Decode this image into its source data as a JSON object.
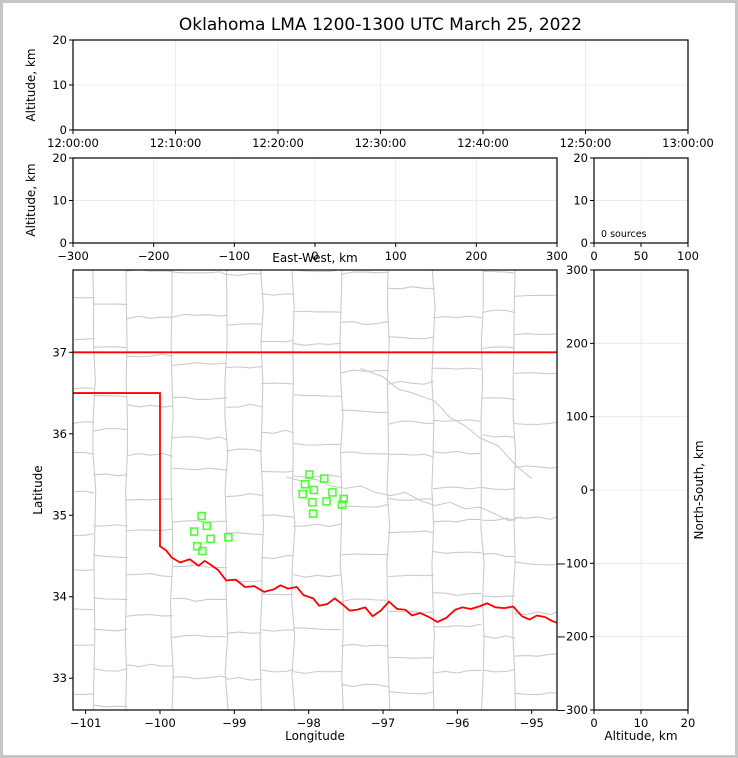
{
  "title": "Oklahoma LMA 1200-1300 UTC March 25, 2022",
  "colors": {
    "state_border": "#ff0000",
    "county_line": "#c9c9c9",
    "source_marker": "#4cff33",
    "grid_line": "#ececec",
    "frame": "#000000",
    "outer_border": "#c6c6c6",
    "background": "#ffffff"
  },
  "panels": {
    "time_height": {
      "ylabel": "Altitude, km",
      "yticks": [
        0,
        10,
        20
      ],
      "ylim": [
        0,
        20
      ],
      "xtick_labels": [
        "12:00:00",
        "12:10:00",
        "12:20:00",
        "12:30:00",
        "12:40:00",
        "12:50:00",
        "13:00:00"
      ]
    },
    "ew_height": {
      "ylabel": "Altitude, km",
      "xlabel": "East-West, km",
      "yticks": [
        0,
        10,
        20
      ],
      "ylim": [
        0,
        20
      ],
      "xticks": [
        -300,
        -200,
        -100,
        0,
        100,
        200,
        300
      ],
      "xlim": [
        -300,
        300
      ]
    },
    "alt_histogram": {
      "annotation": "0 sources",
      "yticks": [
        0,
        10,
        20
      ],
      "ylim": [
        0,
        20
      ],
      "xticks": [
        0,
        50,
        100
      ],
      "xlim": [
        0,
        100
      ]
    },
    "plan_view": {
      "xlabel": "Longitude",
      "ylabel": "Latitude",
      "xticks": [
        -101,
        -100,
        -99,
        -98,
        -97,
        -96,
        -95
      ],
      "yticks": [
        33,
        34,
        35,
        36,
        37
      ],
      "xlim": [
        -101.17,
        -94.66
      ],
      "ylim": [
        32.61,
        38.01
      ]
    },
    "ns_height": {
      "ylabel_right": "North-South, km",
      "xlabel": "Altitude, km",
      "yticks": [
        300,
        200,
        100,
        0,
        -100,
        -200,
        -300
      ],
      "ylim": [
        -300,
        300
      ],
      "xticks": [
        0,
        10,
        20
      ],
      "xlim": [
        0,
        20
      ]
    }
  },
  "chart_data": [
    {
      "panel": "time_height",
      "type": "scatter",
      "ylabel": "Altitude, km",
      "x_tick_labels": [
        "12:00:00",
        "12:10:00",
        "12:20:00",
        "12:30:00",
        "12:40:00",
        "12:50:00",
        "13:00:00"
      ],
      "ylim": [
        0,
        20
      ],
      "points": []
    },
    {
      "panel": "ew_height",
      "type": "scatter",
      "xlabel": "East-West, km",
      "ylabel": "Altitude, km",
      "xlim": [
        -300,
        300
      ],
      "ylim": [
        0,
        20
      ],
      "points": []
    },
    {
      "panel": "alt_histogram",
      "type": "line",
      "annotation": "0 sources",
      "xlim": [
        0,
        100
      ],
      "ylim": [
        0,
        20
      ],
      "points": []
    },
    {
      "panel": "plan_view",
      "type": "scatter",
      "xlabel": "Longitude",
      "ylabel": "Latitude",
      "xlim": [
        -101.17,
        -94.66
      ],
      "ylim": [
        32.61,
        38.01
      ],
      "county_boundaries_shown": true,
      "sources_lonlat": [
        [
          -97.99,
          35.5
        ],
        [
          -97.79,
          35.45
        ],
        [
          -98.05,
          35.38
        ],
        [
          -97.93,
          35.31
        ],
        [
          -98.08,
          35.26
        ],
        [
          -97.68,
          35.28
        ],
        [
          -97.95,
          35.16
        ],
        [
          -97.76,
          35.17
        ],
        [
          -97.53,
          35.2
        ],
        [
          -97.55,
          35.13
        ],
        [
          -97.94,
          35.02
        ],
        [
          -99.44,
          34.99
        ],
        [
          -99.37,
          34.87
        ],
        [
          -99.54,
          34.8
        ],
        [
          -99.32,
          34.71
        ],
        [
          -99.08,
          34.73
        ],
        [
          -99.5,
          34.62
        ],
        [
          -99.43,
          34.56
        ]
      ],
      "state_border": {
        "north": [
          [
            -101.17,
            37.0
          ],
          [
            -94.66,
            37.0
          ]
        ],
        "panhandle_south": [
          [
            -101.17,
            36.5
          ],
          [
            -100.0,
            36.5
          ]
        ],
        "panhandle_west": [
          [
            -100.0,
            36.5
          ],
          [
            -100.0,
            34.62
          ]
        ],
        "red_river": [
          [
            -100.0,
            34.62
          ],
          [
            -99.92,
            34.57
          ],
          [
            -99.84,
            34.48
          ],
          [
            -99.73,
            34.42
          ],
          [
            -99.6,
            34.46
          ],
          [
            -99.48,
            34.38
          ],
          [
            -99.4,
            34.44
          ],
          [
            -99.33,
            34.4
          ],
          [
            -99.22,
            34.33
          ],
          [
            -99.11,
            34.2
          ],
          [
            -98.98,
            34.21
          ],
          [
            -98.86,
            34.12
          ],
          [
            -98.73,
            34.13
          ],
          [
            -98.6,
            34.06
          ],
          [
            -98.47,
            34.09
          ],
          [
            -98.38,
            34.14
          ],
          [
            -98.28,
            34.1
          ],
          [
            -98.16,
            34.12
          ],
          [
            -98.07,
            34.02
          ],
          [
            -97.94,
            33.98
          ],
          [
            -97.86,
            33.89
          ],
          [
            -97.75,
            33.91
          ],
          [
            -97.65,
            33.98
          ],
          [
            -97.55,
            33.91
          ],
          [
            -97.45,
            33.83
          ],
          [
            -97.35,
            33.84
          ],
          [
            -97.24,
            33.87
          ],
          [
            -97.14,
            33.76
          ],
          [
            -97.03,
            33.83
          ],
          [
            -96.92,
            33.94
          ],
          [
            -96.81,
            33.85
          ],
          [
            -96.7,
            33.84
          ],
          [
            -96.61,
            33.77
          ],
          [
            -96.5,
            33.8
          ],
          [
            -96.38,
            33.75
          ],
          [
            -96.27,
            33.69
          ],
          [
            -96.15,
            33.74
          ],
          [
            -96.03,
            33.84
          ],
          [
            -95.93,
            33.87
          ],
          [
            -95.82,
            33.85
          ],
          [
            -95.71,
            33.88
          ],
          [
            -95.6,
            33.92
          ],
          [
            -95.49,
            33.87
          ],
          [
            -95.37,
            33.86
          ],
          [
            -95.25,
            33.88
          ],
          [
            -95.13,
            33.76
          ],
          [
            -95.03,
            33.72
          ],
          [
            -94.93,
            33.77
          ],
          [
            -94.82,
            33.75
          ],
          [
            -94.72,
            33.7
          ],
          [
            -94.66,
            33.68
          ]
        ]
      },
      "rivers": [
        [
          [
            -98.3,
            35.47
          ],
          [
            -98.1,
            35.42
          ],
          [
            -97.9,
            35.44
          ],
          [
            -97.7,
            35.36
          ],
          [
            -97.5,
            35.33
          ],
          [
            -97.3,
            35.36
          ],
          [
            -97.1,
            35.28
          ],
          [
            -96.9,
            35.24
          ],
          [
            -96.7,
            35.28
          ],
          [
            -96.5,
            35.18
          ],
          [
            -96.3,
            35.12
          ],
          [
            -96.1,
            35.16
          ],
          [
            -95.9,
            35.08
          ],
          [
            -95.7,
            35.1
          ],
          [
            -95.5,
            35.02
          ],
          [
            -95.3,
            34.93
          ],
          [
            -95.15,
            34.98
          ]
        ],
        [
          [
            -97.3,
            36.8
          ],
          [
            -97.0,
            36.7
          ],
          [
            -96.8,
            36.55
          ],
          [
            -96.6,
            36.5
          ],
          [
            -96.3,
            36.4
          ],
          [
            -96.1,
            36.2
          ],
          [
            -95.9,
            36.1
          ],
          [
            -95.7,
            35.95
          ],
          [
            -95.45,
            35.85
          ],
          [
            -95.2,
            35.6
          ],
          [
            -95.0,
            35.45
          ]
        ]
      ]
    },
    {
      "panel": "ns_height",
      "type": "scatter",
      "xlabel": "Altitude, km",
      "ylabel": "North-South, km",
      "xlim": [
        0,
        20
      ],
      "ylim": [
        -300,
        300
      ],
      "points": []
    }
  ]
}
